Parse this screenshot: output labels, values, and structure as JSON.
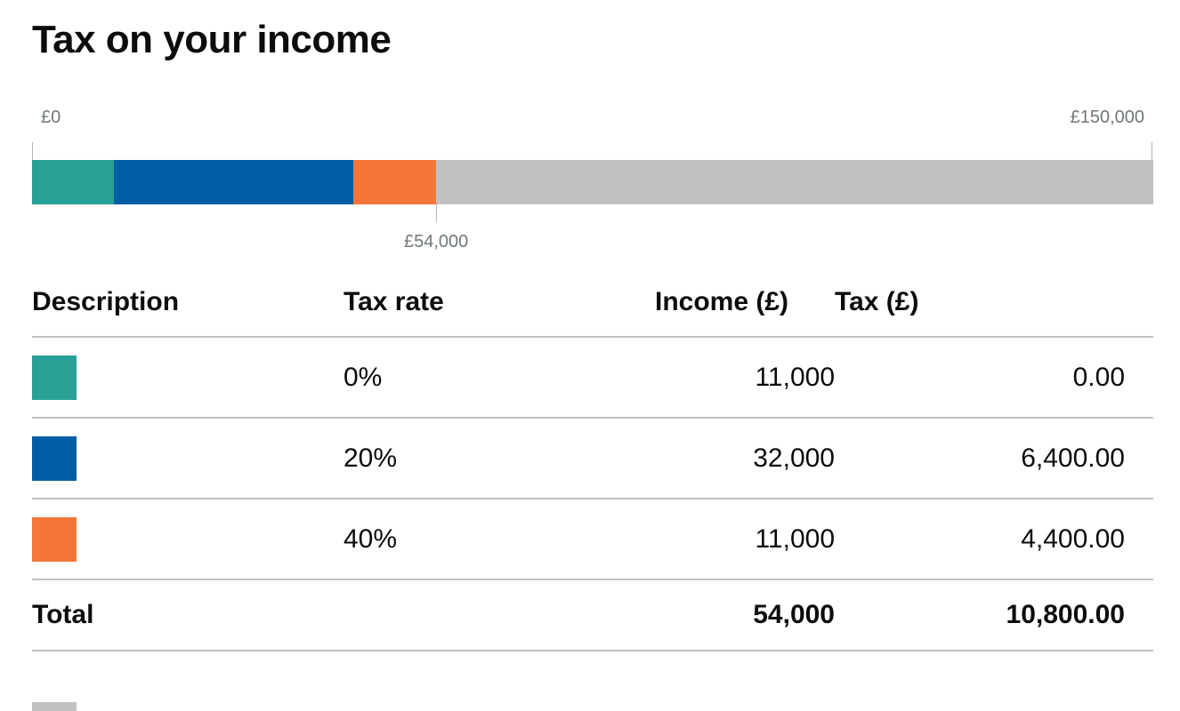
{
  "title": "Tax on your income",
  "scale": {
    "min_label": "£0",
    "max_label": "£150,000",
    "min": 0,
    "max": 150000,
    "marker_label": "£54,000",
    "marker_value": 54000
  },
  "colors": {
    "band_0": "#28a197",
    "band_20": "#005ea5",
    "band_40": "#f47738",
    "remaining": "#bfc1c3"
  },
  "bands": [
    {
      "rate": "0%",
      "income": "11,000",
      "tax": "0.00",
      "amount": 11000,
      "color": "#28a197"
    },
    {
      "rate": "20%",
      "income": "32,000",
      "tax": "6,400.00",
      "amount": 32000,
      "color": "#005ea5"
    },
    {
      "rate": "40%",
      "income": "11,000",
      "tax": "4,400.00",
      "amount": 11000,
      "color": "#f47738"
    }
  ],
  "table": {
    "headers": {
      "description": "Description",
      "rate": "Tax rate",
      "income": "Income (£)",
      "tax": "Tax (£)"
    },
    "total": {
      "label": "Total",
      "income": "54,000",
      "tax": "10,800.00"
    }
  }
}
